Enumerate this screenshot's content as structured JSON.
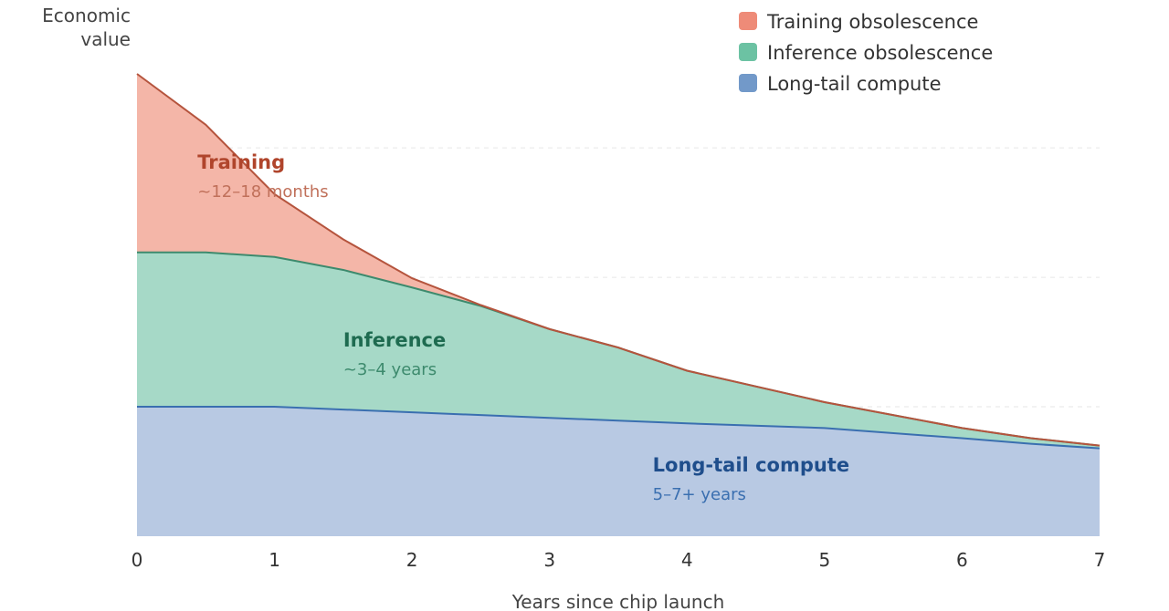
{
  "chart_data": {
    "type": "area",
    "stacked": true,
    "xlabel": "Years since chip launch",
    "ylabel": "Economic value",
    "xlim": [
      0,
      7
    ],
    "ylim": [
      0,
      1
    ],
    "x_ticks": [
      0,
      1,
      2,
      3,
      4,
      5,
      6,
      7
    ],
    "grid": "horizontal dashed",
    "legend_placement": "top-right",
    "x": [
      0,
      0.5,
      1,
      1.5,
      2,
      2.5,
      3,
      3.5,
      4,
      5,
      6,
      6.5,
      7
    ],
    "series": [
      {
        "name": "Long-tail compute",
        "key": "longtail",
        "fill": "#b8c9e3",
        "stroke": "#3a6fb0",
        "annotation": {
          "title": "Long-tail compute",
          "subtitle": "5–7+ years",
          "x": 3.75,
          "y": 0.14,
          "title_color": "#1f4e8c",
          "sub_color": "#3a6fb0"
        },
        "upper": [
          0.28,
          0.28,
          0.28,
          0.274,
          0.268,
          0.262,
          0.256,
          0.25,
          0.244,
          0.234,
          0.212,
          0.2,
          0.19
        ]
      },
      {
        "name": "Inference obsolescence",
        "key": "inference",
        "fill": "#a6d9c7",
        "stroke": "#3d8a6d",
        "annotation": {
          "title": "Inference",
          "subtitle": "~3–4 years",
          "x": 1.5,
          "y": 0.41,
          "title_color": "#1e6b50",
          "sub_color": "#3d8a6d"
        },
        "upper": [
          0.614,
          0.614,
          0.604,
          0.576,
          0.538,
          0.498,
          0.448,
          0.408,
          0.358,
          0.29,
          0.234,
          0.212,
          0.196
        ]
      },
      {
        "name": "Training obsolescence",
        "key": "training",
        "fill": "#f4b6a8",
        "stroke": "#b5543d",
        "annotation": {
          "title": "Training",
          "subtitle": "~12–18 months",
          "x": 0.44,
          "y": 0.795,
          "title_color": "#b0452c",
          "sub_color": "#c0705a"
        },
        "upper": [
          1.0,
          0.89,
          0.74,
          0.642,
          0.558,
          0.5,
          0.448,
          0.408,
          0.358,
          0.29,
          0.234,
          0.212,
          0.196
        ]
      }
    ],
    "legend": [
      {
        "label": "Training obsolescence",
        "swatch": "#ee8b78"
      },
      {
        "label": "Inference obsolescence",
        "swatch": "#6cc2a3"
      },
      {
        "label": "Long-tail compute",
        "swatch": "#7299c9"
      }
    ]
  }
}
